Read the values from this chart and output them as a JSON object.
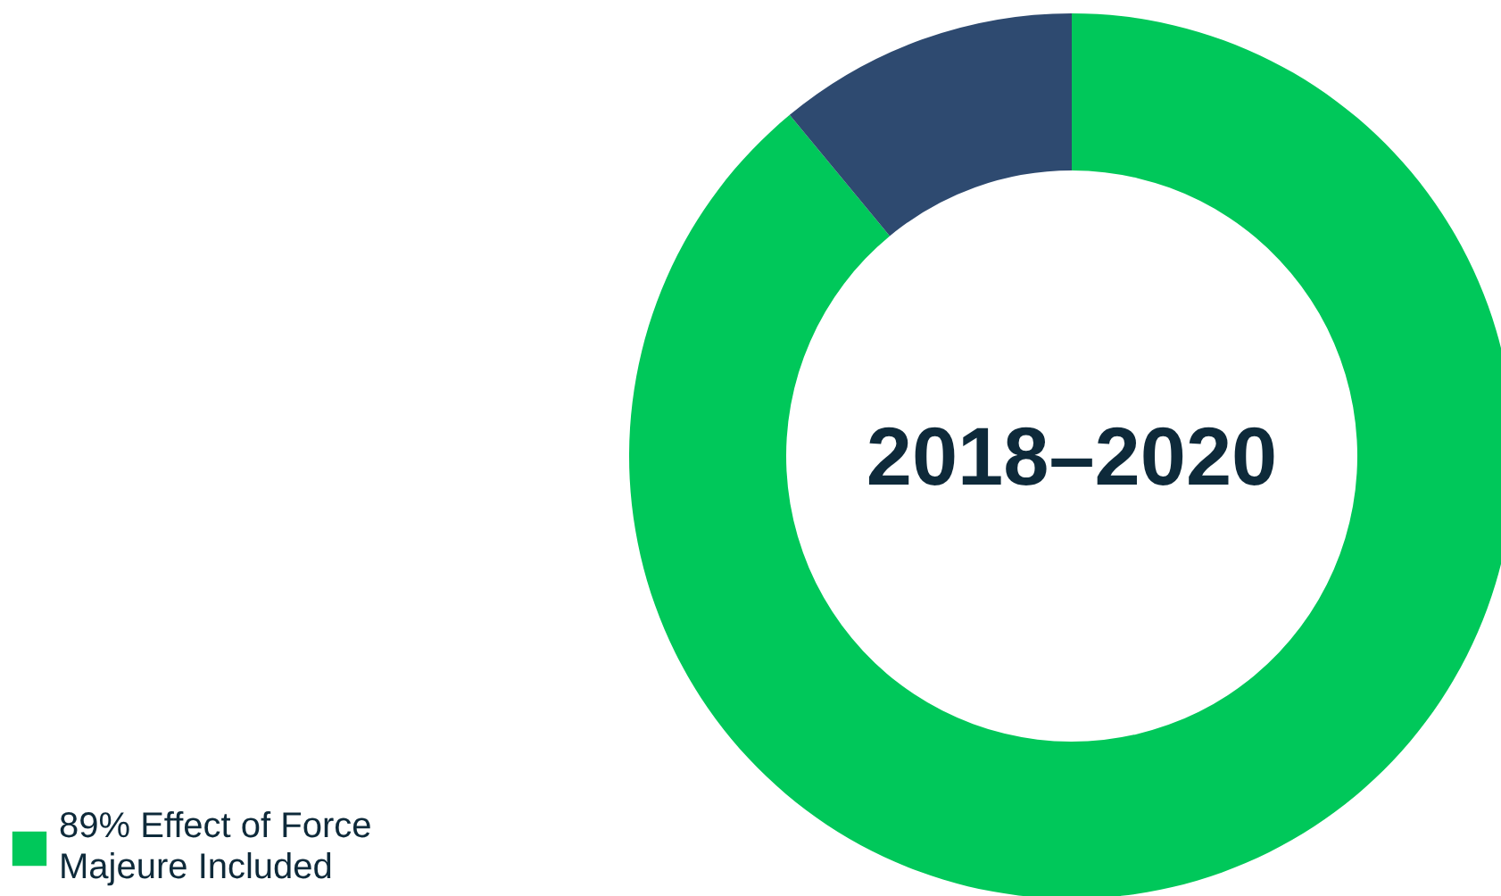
{
  "chart_data": {
    "type": "donut",
    "title": "2018–2020",
    "categories": [
      "Effect of Force Majeure Included",
      null
    ],
    "values": [
      89,
      11
    ],
    "colors": [
      "#00c85a",
      "#2e4a70"
    ],
    "value_labels": [
      "89%",
      null
    ],
    "legend": "bottom left"
  }
}
